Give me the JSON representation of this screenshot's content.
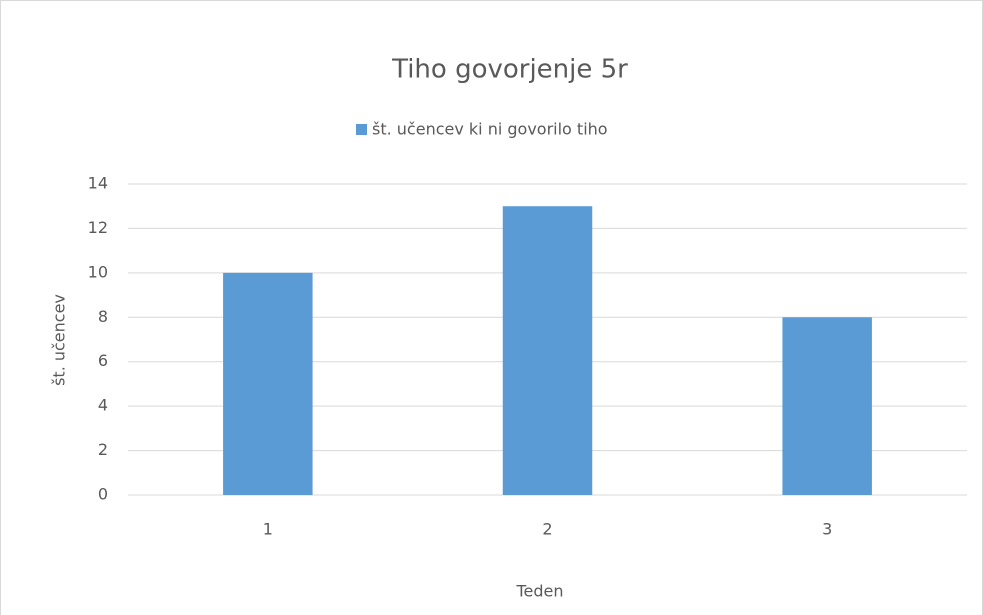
{
  "chart_data": {
    "type": "bar",
    "title": "Tiho govorjenje 5r",
    "categories": [
      "1",
      "2",
      "3"
    ],
    "series": [
      {
        "name": "št. učencev ki ni govorilo tiho",
        "color": "#5b9bd5",
        "values": [
          10,
          13,
          8
        ]
      }
    ],
    "xlabel": "Teden",
    "ylabel": "št. učencev",
    "ylim": [
      0,
      14
    ],
    "yticks": [
      0,
      2,
      4,
      6,
      8,
      10,
      12,
      14
    ],
    "grid": true,
    "legend": "top"
  }
}
